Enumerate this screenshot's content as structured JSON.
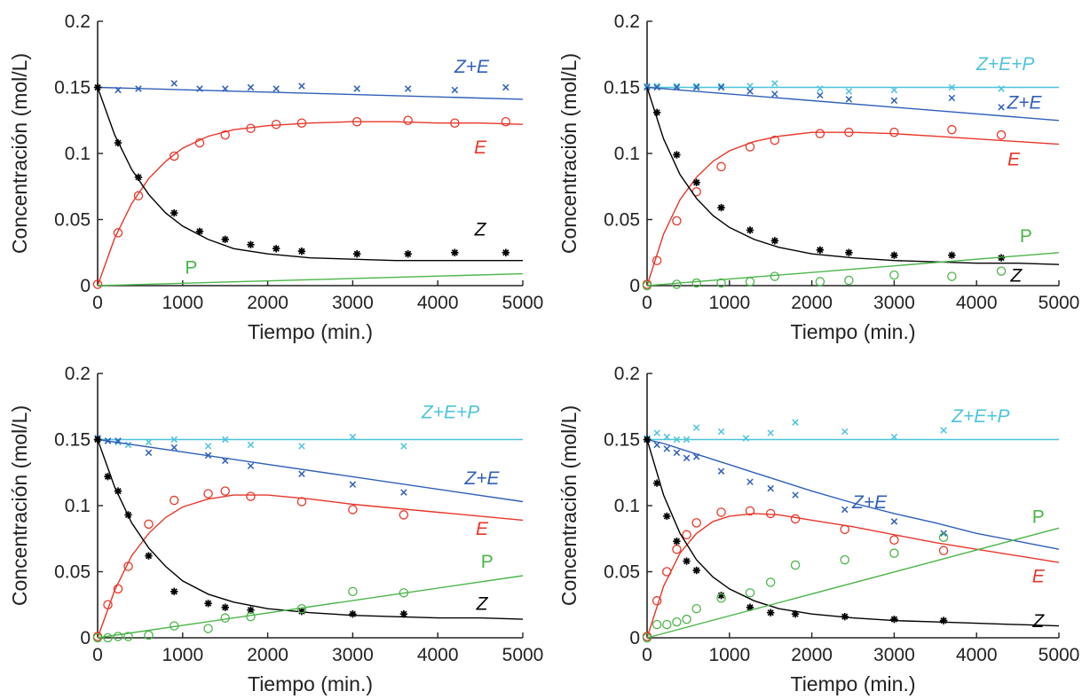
{
  "colors": {
    "Z": "#000000",
    "E": "#e8372a",
    "P": "#4cb54a",
    "ZE": "#2f5fb8",
    "ZEP": "#4cc3dd",
    "axis": "#222222"
  },
  "chart_data": [
    {
      "type": "line",
      "xlabel": "Tiempo (min.)",
      "ylabel": "Concentración (mol/L)",
      "xlim": [
        0,
        5000
      ],
      "ylim": [
        0,
        0.2
      ],
      "xticks": [
        "0",
        "1000",
        "2000",
        "3000",
        "4000",
        "5000"
      ],
      "yticks": [
        "0",
        "0.05",
        "0.1",
        "0.15",
        "0.2"
      ],
      "grid": false,
      "series": [
        {
          "name": "Z+E",
          "color": "#2f5fb8",
          "marker": "x",
          "x": [
            240,
            480,
            900,
            1200,
            1500,
            1800,
            2100,
            2400,
            3050,
            3650,
            4200,
            4800
          ],
          "y": [
            0.148,
            0.149,
            0.153,
            0.149,
            0.149,
            0.15,
            0.149,
            0.151,
            0.149,
            0.149,
            0.148,
            0.15
          ],
          "fit_x": [
            0,
            5000
          ],
          "fit_y": [
            0.15,
            0.141
          ]
        },
        {
          "name": "E",
          "color": "#e8372a",
          "marker": "o",
          "x": [
            0,
            240,
            480,
            900,
            1200,
            1500,
            1800,
            2100,
            2400,
            3050,
            3650,
            4200,
            4800
          ],
          "y": [
            0.001,
            0.04,
            0.068,
            0.098,
            0.108,
            0.114,
            0.119,
            0.122,
            0.123,
            0.124,
            0.125,
            0.123,
            0.124
          ],
          "fit_x": [
            0,
            200,
            400,
            600,
            800,
            1000,
            1300,
            1600,
            2000,
            2500,
            3000,
            3500,
            4000,
            4500,
            5000
          ],
          "fit_y": [
            0,
            0.036,
            0.062,
            0.081,
            0.094,
            0.104,
            0.113,
            0.118,
            0.121,
            0.123,
            0.124,
            0.124,
            0.123,
            0.123,
            0.122
          ]
        },
        {
          "name": "Z",
          "color": "#000000",
          "marker": "*",
          "x": [
            0,
            240,
            480,
            900,
            1200,
            1500,
            1800,
            2100,
            2400,
            3050,
            3650,
            4200,
            4800
          ],
          "y": [
            0.15,
            0.108,
            0.082,
            0.055,
            0.041,
            0.035,
            0.031,
            0.028,
            0.026,
            0.024,
            0.024,
            0.025,
            0.025
          ],
          "fit_x": [
            0,
            200,
            400,
            600,
            800,
            1000,
            1300,
            1600,
            2000,
            2500,
            3000,
            3500,
            4000,
            4500,
            5000
          ],
          "fit_y": [
            0.15,
            0.114,
            0.088,
            0.069,
            0.055,
            0.045,
            0.035,
            0.028,
            0.024,
            0.021,
            0.02,
            0.019,
            0.019,
            0.019,
            0.019
          ]
        },
        {
          "name": "P",
          "color": "#4cb54a",
          "marker": "none",
          "x": [],
          "y": [],
          "fit_x": [
            0,
            5000
          ],
          "fit_y": [
            0.0,
            0.009
          ]
        }
      ]
    },
    {
      "type": "line",
      "xlabel": "Tiempo (min.)",
      "ylabel": "Concentración (mol/L)",
      "xlim": [
        0,
        5000
      ],
      "ylim": [
        0,
        0.2
      ],
      "xticks": [
        "0",
        "1000",
        "2000",
        "3000",
        "4000",
        "5000"
      ],
      "yticks": [
        "0",
        "0.05",
        "0.1",
        "0.15",
        "0.2"
      ],
      "grid": false,
      "series": [
        {
          "name": "Z+E+P",
          "color": "#4cc3dd",
          "marker": "x",
          "x": [
            0,
            120,
            360,
            600,
            900,
            1250,
            1550,
            2100,
            2450,
            3000,
            3700,
            4300
          ],
          "y": [
            0.151,
            0.151,
            0.151,
            0.151,
            0.151,
            0.151,
            0.153,
            0.149,
            0.147,
            0.148,
            0.15,
            0.149
          ],
          "fit_x": [
            0,
            5000
          ],
          "fit_y": [
            0.15,
            0.15
          ]
        },
        {
          "name": "Z+E",
          "color": "#2f5fb8",
          "marker": "x",
          "x": [
            0,
            120,
            360,
            600,
            900,
            1250,
            1550,
            2100,
            2450,
            3000,
            3700,
            4300
          ],
          "y": [
            0.15,
            0.15,
            0.15,
            0.15,
            0.15,
            0.147,
            0.145,
            0.144,
            0.141,
            0.14,
            0.142,
            0.135
          ],
          "fit_x": [
            0,
            5000
          ],
          "fit_y": [
            0.15,
            0.125
          ]
        },
        {
          "name": "E",
          "color": "#e8372a",
          "marker": "o",
          "x": [
            0,
            120,
            360,
            600,
            900,
            1250,
            1550,
            2100,
            2450,
            3000,
            3700,
            4300
          ],
          "y": [
            0.001,
            0.019,
            0.049,
            0.071,
            0.09,
            0.105,
            0.11,
            0.115,
            0.116,
            0.116,
            0.118,
            0.114
          ],
          "fit_x": [
            0,
            200,
            400,
            600,
            800,
            1000,
            1300,
            1600,
            2000,
            2500,
            3000,
            3500,
            4000,
            4500,
            5000
          ],
          "fit_y": [
            0,
            0.039,
            0.065,
            0.082,
            0.094,
            0.102,
            0.109,
            0.113,
            0.116,
            0.116,
            0.115,
            0.113,
            0.111,
            0.109,
            0.107
          ]
        },
        {
          "name": "Z",
          "color": "#000000",
          "marker": "*",
          "x": [
            120,
            360,
            600,
            900,
            1250,
            1550,
            2100,
            2450,
            3000,
            3700,
            4300
          ],
          "y": [
            0.131,
            0.099,
            0.078,
            0.059,
            0.042,
            0.034,
            0.027,
            0.025,
            0.023,
            0.023,
            0.021
          ],
          "fit_x": [
            0,
            200,
            400,
            600,
            800,
            1000,
            1300,
            1600,
            2000,
            2500,
            3000,
            3500,
            4000,
            4500,
            5000
          ],
          "fit_y": [
            0.15,
            0.111,
            0.084,
            0.066,
            0.053,
            0.044,
            0.035,
            0.029,
            0.024,
            0.021,
            0.019,
            0.018,
            0.017,
            0.017,
            0.016
          ]
        },
        {
          "name": "P",
          "color": "#4cb54a",
          "marker": "o",
          "x": [
            0,
            360,
            600,
            900,
            1250,
            1550,
            2100,
            2450,
            3000,
            3700,
            4300
          ],
          "y": [
            0.0,
            0.001,
            0.002,
            0.002,
            0.003,
            0.007,
            0.003,
            0.004,
            0.008,
            0.007,
            0.011
          ],
          "fit_x": [
            0,
            5000
          ],
          "fit_y": [
            0.0,
            0.025
          ]
        }
      ]
    },
    {
      "type": "line",
      "xlabel": "Tiempo (min.)",
      "ylabel": "Concentración (mol/L)",
      "xlim": [
        0,
        5000
      ],
      "ylim": [
        0,
        0.2
      ],
      "xticks": [
        "0",
        "1000",
        "2000",
        "3000",
        "4000",
        "5000"
      ],
      "yticks": [
        "0",
        "0.05",
        "0.1",
        "0.15",
        "0.2"
      ],
      "grid": false,
      "series": [
        {
          "name": "Z+E+P",
          "color": "#4cc3dd",
          "marker": "x",
          "x": [
            0,
            120,
            240,
            360,
            600,
            900,
            1300,
            1500,
            1800,
            2400,
            3000,
            3600
          ],
          "y": [
            0.151,
            0.149,
            0.148,
            0.146,
            0.148,
            0.15,
            0.145,
            0.15,
            0.146,
            0.145,
            0.152,
            0.145
          ],
          "fit_x": [
            0,
            5000
          ],
          "fit_y": [
            0.15,
            0.15
          ]
        },
        {
          "name": "Z+E",
          "color": "#2f5fb8",
          "marker": "x",
          "x": [
            0,
            120,
            240,
            600,
            900,
            1300,
            1500,
            1800,
            2400,
            3000,
            3600
          ],
          "y": [
            0.151,
            0.149,
            0.149,
            0.14,
            0.144,
            0.138,
            0.134,
            0.13,
            0.124,
            0.116,
            0.11
          ],
          "fit_x": [
            0,
            5000
          ],
          "fit_y": [
            0.15,
            0.103
          ]
        },
        {
          "name": "E",
          "color": "#e8372a",
          "marker": "o",
          "x": [
            0,
            120,
            240,
            360,
            600,
            900,
            1300,
            1500,
            1800,
            2400,
            3000,
            3600
          ],
          "y": [
            0.001,
            0.025,
            0.037,
            0.054,
            0.086,
            0.104,
            0.109,
            0.111,
            0.107,
            0.103,
            0.097,
            0.093
          ],
          "fit_x": [
            0,
            200,
            400,
            600,
            800,
            1000,
            1300,
            1600,
            2000,
            2500,
            3000,
            3500,
            4000,
            4500,
            5000
          ],
          "fit_y": [
            0,
            0.036,
            0.062,
            0.079,
            0.091,
            0.099,
            0.105,
            0.108,
            0.108,
            0.105,
            0.101,
            0.098,
            0.095,
            0.092,
            0.089
          ]
        },
        {
          "name": "Z",
          "color": "#000000",
          "marker": "*",
          "x": [
            0,
            120,
            240,
            360,
            600,
            900,
            1300,
            1500,
            1800,
            2400,
            3000,
            3600
          ],
          "y": [
            0.15,
            0.122,
            0.111,
            0.093,
            0.062,
            0.035,
            0.026,
            0.023,
            0.021,
            0.02,
            0.018,
            0.018
          ],
          "fit_x": [
            0,
            200,
            400,
            600,
            800,
            1000,
            1300,
            1600,
            2000,
            2500,
            3000,
            3500,
            4000,
            4500,
            5000
          ],
          "fit_y": [
            0.15,
            0.114,
            0.087,
            0.068,
            0.054,
            0.043,
            0.033,
            0.027,
            0.022,
            0.019,
            0.017,
            0.016,
            0.015,
            0.015,
            0.014
          ]
        },
        {
          "name": "P",
          "color": "#4cb54a",
          "marker": "o",
          "x": [
            0,
            120,
            240,
            360,
            600,
            900,
            1300,
            1500,
            1800,
            2400,
            3000,
            3600
          ],
          "y": [
            0.0,
            0.0,
            0.001,
            0.001,
            0.002,
            0.009,
            0.007,
            0.015,
            0.016,
            0.022,
            0.035,
            0.034
          ],
          "fit_x": [
            0,
            5000
          ],
          "fit_y": [
            0.0,
            0.047
          ]
        }
      ]
    },
    {
      "type": "line",
      "xlabel": "Tiempo (min.)",
      "ylabel": "Concentración (mol/L)",
      "xlim": [
        0,
        5000
      ],
      "ylim": [
        0,
        0.2
      ],
      "xticks": [
        "0",
        "1000",
        "2000",
        "3000",
        "4000",
        "5000"
      ],
      "yticks": [
        "0",
        "0.05",
        "0.1",
        "0.15",
        "0.2"
      ],
      "grid": false,
      "series": [
        {
          "name": "Z+E+P",
          "color": "#4cc3dd",
          "marker": "x",
          "x": [
            0,
            120,
            240,
            360,
            480,
            600,
            900,
            1200,
            1500,
            1800,
            2400,
            3000,
            3600
          ],
          "y": [
            0.151,
            0.155,
            0.152,
            0.15,
            0.15,
            0.159,
            0.156,
            0.151,
            0.155,
            0.163,
            0.156,
            0.152,
            0.157
          ],
          "fit_x": [
            0,
            5000
          ],
          "fit_y": [
            0.15,
            0.15
          ]
        },
        {
          "name": "Z+E",
          "color": "#2f5fb8",
          "marker": "x",
          "x": [
            0,
            120,
            240,
            360,
            480,
            600,
            900,
            1250,
            1500,
            1800,
            2400,
            3000,
            3600
          ],
          "y": [
            0.15,
            0.146,
            0.143,
            0.14,
            0.136,
            0.137,
            0.126,
            0.118,
            0.113,
            0.108,
            0.097,
            0.088,
            0.079
          ],
          "fit_x": [
            0,
            200,
            400,
            600,
            800,
            1000,
            1300,
            1600,
            2000,
            2500,
            3000,
            3500,
            4000,
            4500,
            5000
          ],
          "fit_y": [
            0.15,
            0.147,
            0.143,
            0.139,
            0.135,
            0.131,
            0.125,
            0.119,
            0.111,
            0.102,
            0.094,
            0.087,
            0.079,
            0.073,
            0.067
          ]
        },
        {
          "name": "E",
          "color": "#e8372a",
          "marker": "o",
          "x": [
            0,
            120,
            240,
            360,
            480,
            600,
            900,
            1250,
            1500,
            1800,
            2400,
            3000,
            3600
          ],
          "y": [
            0.001,
            0.028,
            0.05,
            0.067,
            0.078,
            0.087,
            0.095,
            0.096,
            0.094,
            0.09,
            0.082,
            0.074,
            0.066
          ],
          "fit_x": [
            0,
            200,
            400,
            600,
            800,
            1000,
            1300,
            1600,
            2000,
            2500,
            3000,
            3500,
            4000,
            4500,
            5000
          ],
          "fit_y": [
            0,
            0.039,
            0.064,
            0.079,
            0.088,
            0.092,
            0.094,
            0.093,
            0.089,
            0.084,
            0.078,
            0.072,
            0.067,
            0.062,
            0.057
          ]
        },
        {
          "name": "Z",
          "color": "#000000",
          "marker": "*",
          "x": [
            0,
            120,
            240,
            360,
            480,
            600,
            900,
            1250,
            1500,
            1800,
            2400,
            3000,
            3600
          ],
          "y": [
            0.15,
            0.117,
            0.092,
            0.073,
            0.058,
            0.051,
            0.032,
            0.023,
            0.019,
            0.018,
            0.016,
            0.014,
            0.013
          ],
          "fit_x": [
            0,
            200,
            400,
            600,
            800,
            1000,
            1300,
            1600,
            2000,
            2500,
            3000,
            3500,
            4000,
            4500,
            5000
          ],
          "fit_y": [
            0.15,
            0.108,
            0.079,
            0.059,
            0.046,
            0.037,
            0.028,
            0.022,
            0.018,
            0.015,
            0.013,
            0.012,
            0.011,
            0.01,
            0.009
          ]
        },
        {
          "name": "P",
          "color": "#4cb54a",
          "marker": "o",
          "x": [
            0,
            120,
            240,
            360,
            480,
            600,
            900,
            1250,
            1500,
            1800,
            2400,
            3000,
            3600
          ],
          "y": [
            0.0,
            0.01,
            0.01,
            0.012,
            0.014,
            0.022,
            0.03,
            0.034,
            0.042,
            0.055,
            0.059,
            0.064,
            0.076
          ],
          "fit_x": [
            0,
            5000
          ],
          "fit_y": [
            0.0,
            0.083
          ]
        }
      ]
    }
  ]
}
